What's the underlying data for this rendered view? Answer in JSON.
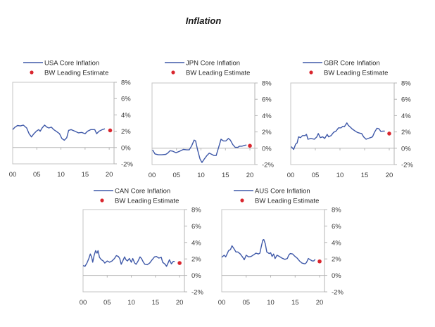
{
  "page": {
    "title": "Inflation"
  },
  "colors": {
    "series": "#3e58a8",
    "estimate": "#d9262e",
    "axis": "#c4c4c4",
    "text": "#3a3a3a"
  },
  "chart_data": [
    {
      "type": "line",
      "title": "USA",
      "series": [
        {
          "name": "USA Core Inflation",
          "x": [
            2000.0,
            2000.5,
            2001.0,
            2001.6,
            2002.2,
            2002.9,
            2003.4,
            2003.9,
            2004.4,
            2004.9,
            2005.4,
            2005.7,
            2006.1,
            2006.6,
            2007.1,
            2007.5,
            2008.0,
            2008.5,
            2009.0,
            2009.7,
            2010.2,
            2010.7,
            2011.2,
            2011.6,
            2012.1,
            2012.9,
            2013.6,
            2014.3,
            2015.0,
            2015.5,
            2016.2,
            2017.0,
            2017.4,
            2017.9,
            2018.6,
            2019.1
          ],
          "values": [
            2.2,
            2.5,
            2.7,
            2.65,
            2.75,
            2.4,
            1.7,
            1.3,
            1.7,
            2.0,
            2.2,
            2.0,
            2.4,
            2.75,
            2.5,
            2.4,
            2.5,
            2.2,
            2.0,
            1.7,
            1.1,
            0.9,
            1.2,
            2.1,
            2.2,
            2.0,
            1.8,
            1.85,
            1.7,
            2.0,
            2.2,
            2.2,
            1.7,
            2.0,
            2.2,
            2.3
          ]
        }
      ],
      "estimate": {
        "name": "BW Leading Estimate",
        "x": 2020.2,
        "value": 2.1
      },
      "xticks": [
        2000,
        2005,
        2010,
        2015,
        2020
      ],
      "xticklabels": [
        "00",
        "05",
        "10",
        "15",
        "20"
      ],
      "yticks": [
        -2,
        0,
        2,
        4,
        6,
        8
      ],
      "yticklabels": [
        "-2%",
        "0%",
        "2%",
        "4%",
        "6%",
        "8%"
      ],
      "xlim": [
        2000,
        2021
      ],
      "ylim": [
        -2,
        8
      ],
      "xlabel": "",
      "ylabel": "",
      "grid": false,
      "legend_position": "top"
    },
    {
      "type": "line",
      "title": "JPN",
      "series": [
        {
          "name": "JPN Core Inflation",
          "x": [
            2000.1,
            2000.6,
            2001.3,
            2002.0,
            2002.8,
            2003.2,
            2003.7,
            2004.2,
            2004.9,
            2005.7,
            2006.4,
            2007.1,
            2007.6,
            2008.1,
            2008.6,
            2008.9,
            2009.3,
            2009.8,
            2010.2,
            2010.7,
            2011.2,
            2011.7,
            2012.2,
            2012.7,
            2013.1,
            2013.6,
            2014.1,
            2014.6,
            2015.1,
            2015.6,
            2016.0,
            2016.5,
            2017.0,
            2017.5,
            2017.9,
            2018.4,
            2018.9,
            2019.3
          ],
          "values": [
            -0.2,
            -0.7,
            -0.8,
            -0.8,
            -0.75,
            -0.6,
            -0.3,
            -0.35,
            -0.55,
            -0.35,
            -0.15,
            -0.2,
            -0.2,
            0.3,
            1.0,
            0.9,
            -0.2,
            -1.3,
            -1.75,
            -1.3,
            -0.9,
            -0.6,
            -0.75,
            -0.9,
            -0.9,
            0.1,
            1.1,
            0.9,
            0.9,
            1.2,
            1.0,
            0.45,
            0.1,
            0.1,
            0.25,
            0.25,
            0.35,
            0.4
          ]
        }
      ],
      "estimate": {
        "name": "BW Leading Estimate",
        "x": 2020.0,
        "value": 0.3
      },
      "xticks": [
        2000,
        2005,
        2010,
        2015,
        2020
      ],
      "xticklabels": [
        "00",
        "05",
        "10",
        "15",
        "20"
      ],
      "yticks": [
        -2,
        0,
        2,
        4,
        6,
        8
      ],
      "yticklabels": [
        "-2%",
        "0%",
        "2%",
        "4%",
        "6%",
        "8%"
      ],
      "xlim": [
        2000,
        2021
      ],
      "ylim": [
        -2,
        8
      ],
      "xlabel": "",
      "ylabel": "",
      "grid": false,
      "legend_position": "top"
    },
    {
      "type": "line",
      "title": "GBR",
      "series": [
        {
          "name": "GBR Core Inflation",
          "x": [
            2000.1,
            2000.4,
            2000.6,
            2001.0,
            2001.3,
            2001.6,
            2002.0,
            2002.4,
            2002.9,
            2003.2,
            2003.5,
            2004.1,
            2004.8,
            2005.3,
            2005.6,
            2006.0,
            2006.5,
            2006.9,
            2007.4,
            2007.7,
            2008.2,
            2008.7,
            2009.2,
            2009.7,
            2010.2,
            2010.6,
            2010.9,
            2011.4,
            2011.7,
            2012.0,
            2012.5,
            2013.0,
            2013.5,
            2014.0,
            2014.4,
            2014.8,
            2015.3,
            2015.7,
            2016.2,
            2016.6,
            2017.0,
            2017.5,
            2017.9,
            2018.3,
            2018.7,
            2019.1
          ],
          "values": [
            0.2,
            0.0,
            -0.15,
            0.5,
            0.65,
            1.4,
            1.3,
            1.55,
            1.55,
            1.7,
            1.1,
            1.2,
            1.1,
            1.4,
            1.8,
            1.3,
            1.4,
            1.2,
            1.7,
            1.4,
            1.55,
            1.95,
            2.1,
            2.5,
            2.5,
            2.7,
            2.65,
            3.1,
            2.8,
            2.65,
            2.35,
            2.15,
            1.95,
            1.85,
            1.8,
            1.4,
            1.1,
            1.2,
            1.3,
            1.4,
            1.95,
            2.45,
            2.4,
            2.05,
            2.1,
            2.1
          ]
        }
      ],
      "estimate": {
        "name": "BW Leading Estimate",
        "x": 2020.0,
        "value": 1.8
      },
      "xticks": [
        2000,
        2005,
        2010,
        2015,
        2020
      ],
      "xticklabels": [
        "00",
        "05",
        "10",
        "15",
        "20"
      ],
      "yticks": [
        -2,
        0,
        2,
        4,
        6,
        8
      ],
      "yticklabels": [
        "-2%",
        "0%",
        "2%",
        "4%",
        "6%",
        "8%"
      ],
      "xlim": [
        2000,
        2021
      ],
      "ylim": [
        -2,
        8
      ],
      "xlabel": "",
      "ylabel": "",
      "grid": false,
      "legend_position": "top"
    },
    {
      "type": "line",
      "title": "CAN",
      "series": [
        {
          "name": "CAN Core Inflation",
          "x": [
            2000.0,
            2000.4,
            2000.8,
            2001.2,
            2001.5,
            2001.8,
            2002.0,
            2002.3,
            2002.6,
            2002.9,
            2003.1,
            2003.4,
            2003.8,
            2004.2,
            2004.5,
            2005.0,
            2005.5,
            2006.0,
            2006.5,
            2006.9,
            2007.3,
            2007.6,
            2007.9,
            2008.2,
            2008.6,
            2008.9,
            2009.2,
            2009.6,
            2010.0,
            2010.3,
            2010.7,
            2011.0,
            2011.4,
            2011.8,
            2012.1,
            2012.5,
            2012.8,
            2013.3,
            2013.8,
            2014.3,
            2014.8,
            2015.2,
            2015.7,
            2016.2,
            2016.5,
            2017.0,
            2017.3,
            2017.6,
            2017.9,
            2018.3,
            2018.7,
            2019.0
          ],
          "values": [
            1.2,
            1.1,
            1.5,
            2.05,
            2.6,
            2.2,
            1.6,
            2.45,
            3.0,
            2.7,
            3.0,
            2.2,
            1.9,
            1.75,
            1.5,
            1.75,
            1.6,
            1.75,
            2.05,
            2.4,
            2.3,
            2.05,
            1.35,
            1.7,
            2.25,
            1.9,
            1.75,
            2.05,
            1.6,
            2.05,
            1.5,
            1.35,
            1.75,
            2.25,
            2.05,
            1.6,
            1.35,
            1.3,
            1.5,
            1.9,
            2.25,
            2.3,
            2.1,
            2.2,
            1.6,
            1.35,
            1.1,
            1.5,
            1.9,
            1.4,
            1.7,
            1.7
          ]
        }
      ],
      "estimate": {
        "name": "BW Leading Estimate",
        "x": 2020.0,
        "value": 1.5
      },
      "xticks": [
        2000,
        2005,
        2010,
        2015,
        2020
      ],
      "xticklabels": [
        "00",
        "05",
        "10",
        "15",
        "20"
      ],
      "yticks": [
        -2,
        0,
        2,
        4,
        6,
        8
      ],
      "yticklabels": [
        "-2%",
        "0%",
        "2%",
        "4%",
        "6%",
        "8%"
      ],
      "xlim": [
        2000,
        2021
      ],
      "ylim": [
        -2,
        8
      ],
      "xlabel": "",
      "ylabel": "",
      "grid": false,
      "legend_position": "top"
    },
    {
      "type": "line",
      "title": "AUS",
      "series": [
        {
          "name": "AUS Core Inflation",
          "x": [
            2000.0,
            2000.5,
            2000.8,
            2001.1,
            2001.4,
            2001.8,
            2002.1,
            2002.5,
            2002.9,
            2003.3,
            2003.8,
            2004.3,
            2004.6,
            2005.0,
            2005.5,
            2006.0,
            2006.5,
            2007.0,
            2007.5,
            2007.8,
            2008.1,
            2008.4,
            2008.6,
            2008.9,
            2009.2,
            2009.7,
            2010.0,
            2010.3,
            2010.6,
            2010.9,
            2011.3,
            2011.8,
            2012.3,
            2012.9,
            2013.4,
            2013.7,
            2014.0,
            2014.5,
            2014.8,
            2015.1,
            2015.4,
            2015.9,
            2016.4,
            2017.0,
            2017.3,
            2017.7,
            2018.1,
            2018.5,
            2018.8,
            2019.1
          ],
          "values": [
            2.2,
            2.45,
            2.25,
            2.6,
            3.0,
            3.15,
            3.6,
            3.25,
            2.85,
            2.85,
            2.6,
            2.2,
            1.9,
            2.45,
            2.25,
            2.3,
            2.5,
            2.7,
            2.6,
            2.7,
            3.55,
            4.3,
            4.35,
            3.85,
            2.85,
            2.65,
            2.75,
            2.3,
            2.6,
            2.05,
            2.45,
            2.3,
            2.1,
            1.95,
            2.05,
            2.45,
            2.65,
            2.6,
            2.4,
            2.25,
            2.1,
            1.75,
            1.5,
            1.4,
            1.55,
            2.05,
            1.9,
            1.75,
            1.75,
            1.95
          ]
        }
      ],
      "estimate": {
        "name": "BW Leading Estimate",
        "x": 2020.0,
        "value": 1.7
      },
      "xticks": [
        2000,
        2005,
        2010,
        2015,
        2020
      ],
      "xticklabels": [
        "00",
        "05",
        "10",
        "15",
        "20"
      ],
      "yticks": [
        -2,
        0,
        2,
        4,
        6,
        8
      ],
      "yticklabels": [
        "-2%",
        "0%",
        "2%",
        "4%",
        "6%",
        "8%"
      ],
      "xlim": [
        2000,
        2021
      ],
      "ylim": [
        -2,
        8
      ],
      "xlabel": "",
      "ylabel": "",
      "grid": false,
      "legend_position": "top"
    }
  ]
}
